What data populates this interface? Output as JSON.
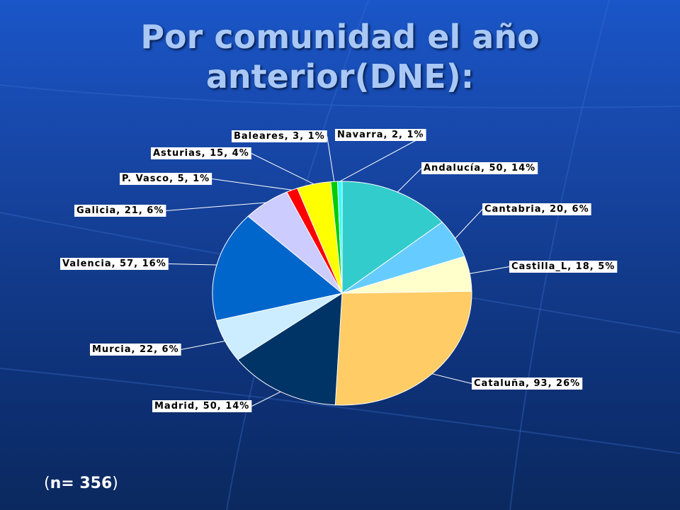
{
  "title": {
    "line1": "Por comunidad el año",
    "line2": "anterior(DNE):"
  },
  "note": {
    "open": "(",
    "text": "n= 356",
    "close": ")"
  },
  "colors": {
    "background": "#1747a8",
    "title": "#a9c8f5",
    "label_box": "#ffffff",
    "label_text": "#000000"
  },
  "chart_data": {
    "type": "pie",
    "title": "",
    "total_n": 356,
    "slices": [
      {
        "name": "Andalucía",
        "value": 50,
        "percent": 14,
        "label": "Andalucía, 50, 14%",
        "color": "#33cccc"
      },
      {
        "name": "Cantabria",
        "value": 20,
        "percent": 6,
        "label": "Cantabria, 20, 6%",
        "color": "#66ccff"
      },
      {
        "name": "Castilla_L",
        "value": 18,
        "percent": 5,
        "label": "Castilla_L, 18, 5%",
        "color": "#ffffcc"
      },
      {
        "name": "Cataluña",
        "value": 93,
        "percent": 26,
        "label": "Cataluña, 93, 26%",
        "color": "#ffcc66"
      },
      {
        "name": "Madrid",
        "value": 50,
        "percent": 14,
        "label": "Madrid, 50, 14%",
        "color": "#003366"
      },
      {
        "name": "Murcia",
        "value": 22,
        "percent": 6,
        "label": "Murcia, 22, 6%",
        "color": "#ccecff"
      },
      {
        "name": "Valencia",
        "value": 57,
        "percent": 16,
        "label": "Valencia, 57, 16%",
        "color": "#0066cc"
      },
      {
        "name": "Galicia",
        "value": 21,
        "percent": 6,
        "label": "Galicia, 21, 6%",
        "color": "#ccccff"
      },
      {
        "name": "P. Vasco",
        "value": 5,
        "percent": 1,
        "label": "P. Vasco, 5, 1%",
        "color": "#ff0000"
      },
      {
        "name": "Asturias",
        "value": 15,
        "percent": 4,
        "label": "Asturias, 15, 4%",
        "color": "#ffff00"
      },
      {
        "name": "Baleares",
        "value": 3,
        "percent": 1,
        "label": "Baleares, 3, 1%",
        "color": "#00cc00"
      },
      {
        "name": "Navarra",
        "value": 2,
        "percent": 1,
        "label": "Navarra, 2, 1%",
        "color": "#33ffff"
      }
    ],
    "start_angle": "12 o'clock",
    "direction": "clockwise",
    "legend": "none",
    "data_labels": "outside with leader lines"
  }
}
